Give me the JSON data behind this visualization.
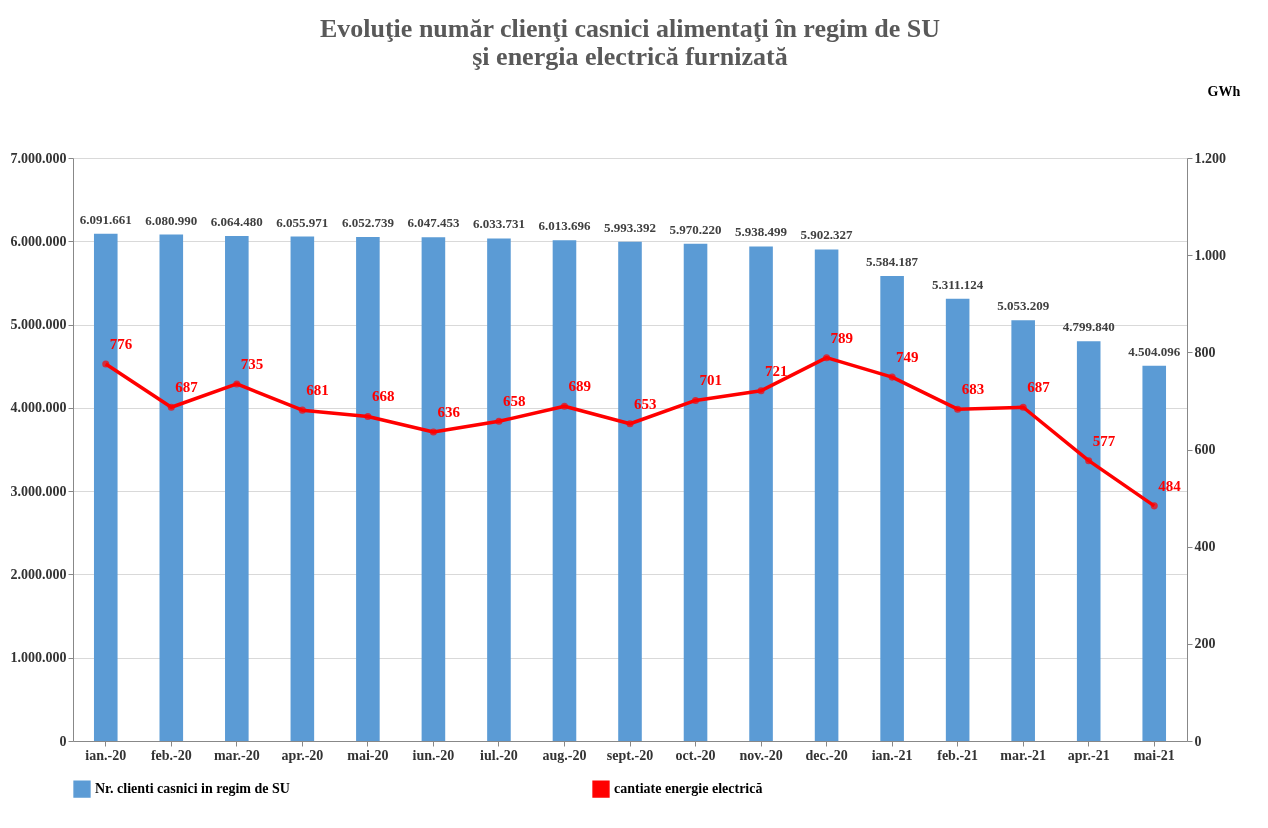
{
  "chart_data": {
    "type": "bar",
    "title": "Evoluţie număr clienţi casnici alimentaţi în regim de SU\nşi energia electrică furnizată",
    "y2label": "GWh",
    "categories": [
      "ian.-20",
      "feb.-20",
      "mar.-20",
      "apr.-20",
      "mai-20",
      "iun.-20",
      "iul.-20",
      "aug.-20",
      "sept.-20",
      "oct.-20",
      "nov.-20",
      "dec.-20",
      "ian.-21",
      "feb.-21",
      "mar.-21",
      "apr.-21",
      "mai-21"
    ],
    "series": [
      {
        "name": "Nr. clienti casnici in regim de SU",
        "color": "#5b9bd5",
        "values": [
          6091661,
          6080990,
          6064480,
          6055971,
          6052739,
          6047453,
          6033731,
          6013696,
          5993392,
          5970220,
          5938499,
          5902327,
          5584187,
          5311124,
          5053209,
          4799840,
          4504096
        ],
        "value_labels": [
          "6.091.661",
          "6.080.990",
          "6.064.480",
          "6.055.971",
          "6.052.739",
          "6.047.453",
          "6.033.731",
          "6.013.696",
          "5.993.392",
          "5.970.220",
          "5.938.499",
          "5.902.327",
          "5.584.187",
          "5.311.124",
          "5.053.209",
          "4.799.840",
          "4.504.096"
        ]
      },
      {
        "name": "cantiate energie electrică",
        "type": "line",
        "axis": "y2",
        "color": "#ff0000",
        "values": [
          776,
          687,
          735,
          681,
          668,
          636,
          658,
          689,
          653,
          701,
          721,
          789,
          749,
          683,
          687,
          577,
          484
        ],
        "value_labels": [
          "776",
          "687",
          "735",
          "681",
          "668",
          "636",
          "658",
          "689",
          "653",
          "701",
          "721",
          "789",
          "749",
          "683",
          "687",
          "577",
          "484"
        ]
      }
    ],
    "ylim": [
      0,
      7000000
    ],
    "yticks": [
      {
        "value": 0,
        "label": "0"
      },
      {
        "value": 1000000,
        "label": "1.000.000"
      },
      {
        "value": 2000000,
        "label": "2.000.000"
      },
      {
        "value": 3000000,
        "label": "3.000.000"
      },
      {
        "value": 4000000,
        "label": "4.000.000"
      },
      {
        "value": 5000000,
        "label": "5.000.000"
      },
      {
        "value": 6000000,
        "label": "6.000.000"
      },
      {
        "value": 7000000,
        "label": "7.000.000"
      }
    ],
    "y2lim": [
      0,
      1200
    ],
    "y2ticks": [
      0,
      200,
      400,
      600,
      800,
      {
        "value": 1000,
        "label": "1.000"
      },
      {
        "value": 1200,
        "label": "1.200"
      }
    ],
    "grid": "y",
    "legend": "bottom",
    "marker": "circle",
    "line_style": "solid"
  }
}
